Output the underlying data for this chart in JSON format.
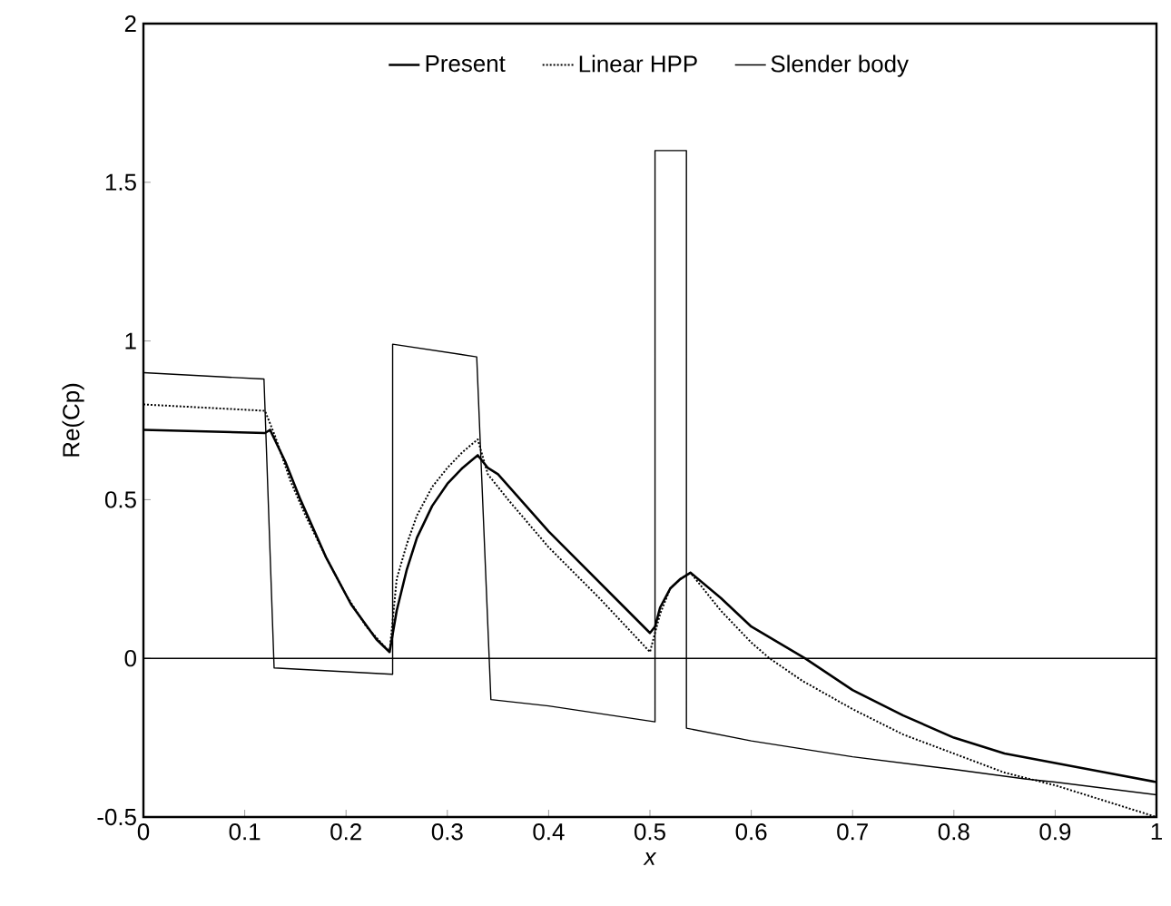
{
  "chart_data": {
    "type": "line",
    "xlabel": "x",
    "ylabel": "Re(Cp)",
    "xlim": [
      0,
      1
    ],
    "ylim": [
      -0.5,
      2
    ],
    "xticks": [
      0,
      0.1,
      0.2,
      0.3,
      0.4,
      0.5,
      0.6,
      0.7,
      0.8,
      0.9,
      1
    ],
    "yticks": [
      -0.5,
      0,
      0.5,
      1,
      1.5,
      2
    ],
    "legend": "top",
    "grid": false,
    "ref_lines": [
      {
        "axis": "y",
        "value": 0,
        "color": "#000000"
      }
    ],
    "series": [
      {
        "name": "Present",
        "color": "#000000",
        "line_style": "solid",
        "x": [
          0,
          0.12,
          0.125,
          0.14,
          0.155,
          0.18,
          0.205,
          0.23,
          0.243,
          0.25,
          0.26,
          0.27,
          0.285,
          0.3,
          0.315,
          0.33,
          0.34,
          0.35,
          0.375,
          0.4,
          0.425,
          0.45,
          0.475,
          0.5,
          0.505,
          0.51,
          0.52,
          0.53,
          0.54,
          0.57,
          0.6,
          0.653,
          0.7,
          0.75,
          0.8,
          0.85,
          0.9,
          0.95,
          1
        ],
        "values": [
          0.72,
          0.71,
          0.72,
          0.62,
          0.5,
          0.32,
          0.17,
          0.06,
          0.02,
          0.15,
          0.28,
          0.38,
          0.48,
          0.55,
          0.6,
          0.64,
          0.6,
          0.58,
          0.49,
          0.4,
          0.32,
          0.24,
          0.16,
          0.08,
          0.1,
          0.16,
          0.22,
          0.25,
          0.27,
          0.19,
          0.1,
          0.0,
          -0.1,
          -0.18,
          -0.25,
          -0.3,
          -0.33,
          -0.36,
          -0.39
        ]
      },
      {
        "name": "Linear HPP",
        "color": "#000000",
        "line_style": "dotted",
        "x": [
          0,
          0.12,
          0.13,
          0.145,
          0.16,
          0.18,
          0.2,
          0.22,
          0.243,
          0.25,
          0.26,
          0.27,
          0.285,
          0.3,
          0.315,
          0.33,
          0.34,
          0.36,
          0.4,
          0.45,
          0.5,
          0.505,
          0.51,
          0.52,
          0.53,
          0.54,
          0.57,
          0.6,
          0.618,
          0.65,
          0.7,
          0.75,
          0.8,
          0.85,
          0.9,
          0.95,
          1
        ],
        "values": [
          0.8,
          0.78,
          0.7,
          0.56,
          0.45,
          0.32,
          0.2,
          0.1,
          0.02,
          0.25,
          0.36,
          0.45,
          0.54,
          0.6,
          0.65,
          0.69,
          0.58,
          0.5,
          0.35,
          0.19,
          0.02,
          0.08,
          0.14,
          0.22,
          0.25,
          0.27,
          0.15,
          0.05,
          0.0,
          -0.07,
          -0.16,
          -0.24,
          -0.3,
          -0.36,
          -0.4,
          -0.45,
          -0.5
        ]
      },
      {
        "name": "Slender body",
        "color": "#000000",
        "line_style": "solid",
        "x": [
          0,
          0.119,
          0.129,
          0.246,
          0.246,
          0.329,
          0.343,
          0.4,
          0.505,
          0.505,
          0.536,
          0.536,
          0.6,
          0.7,
          0.8,
          0.87,
          0.9,
          1
        ],
        "values": [
          0.9,
          0.88,
          -0.03,
          -0.05,
          0.99,
          0.95,
          -0.13,
          -0.15,
          -0.2,
          1.6,
          1.6,
          -0.22,
          -0.26,
          -0.31,
          -0.35,
          -0.38,
          -0.39,
          -0.43
        ]
      }
    ]
  }
}
